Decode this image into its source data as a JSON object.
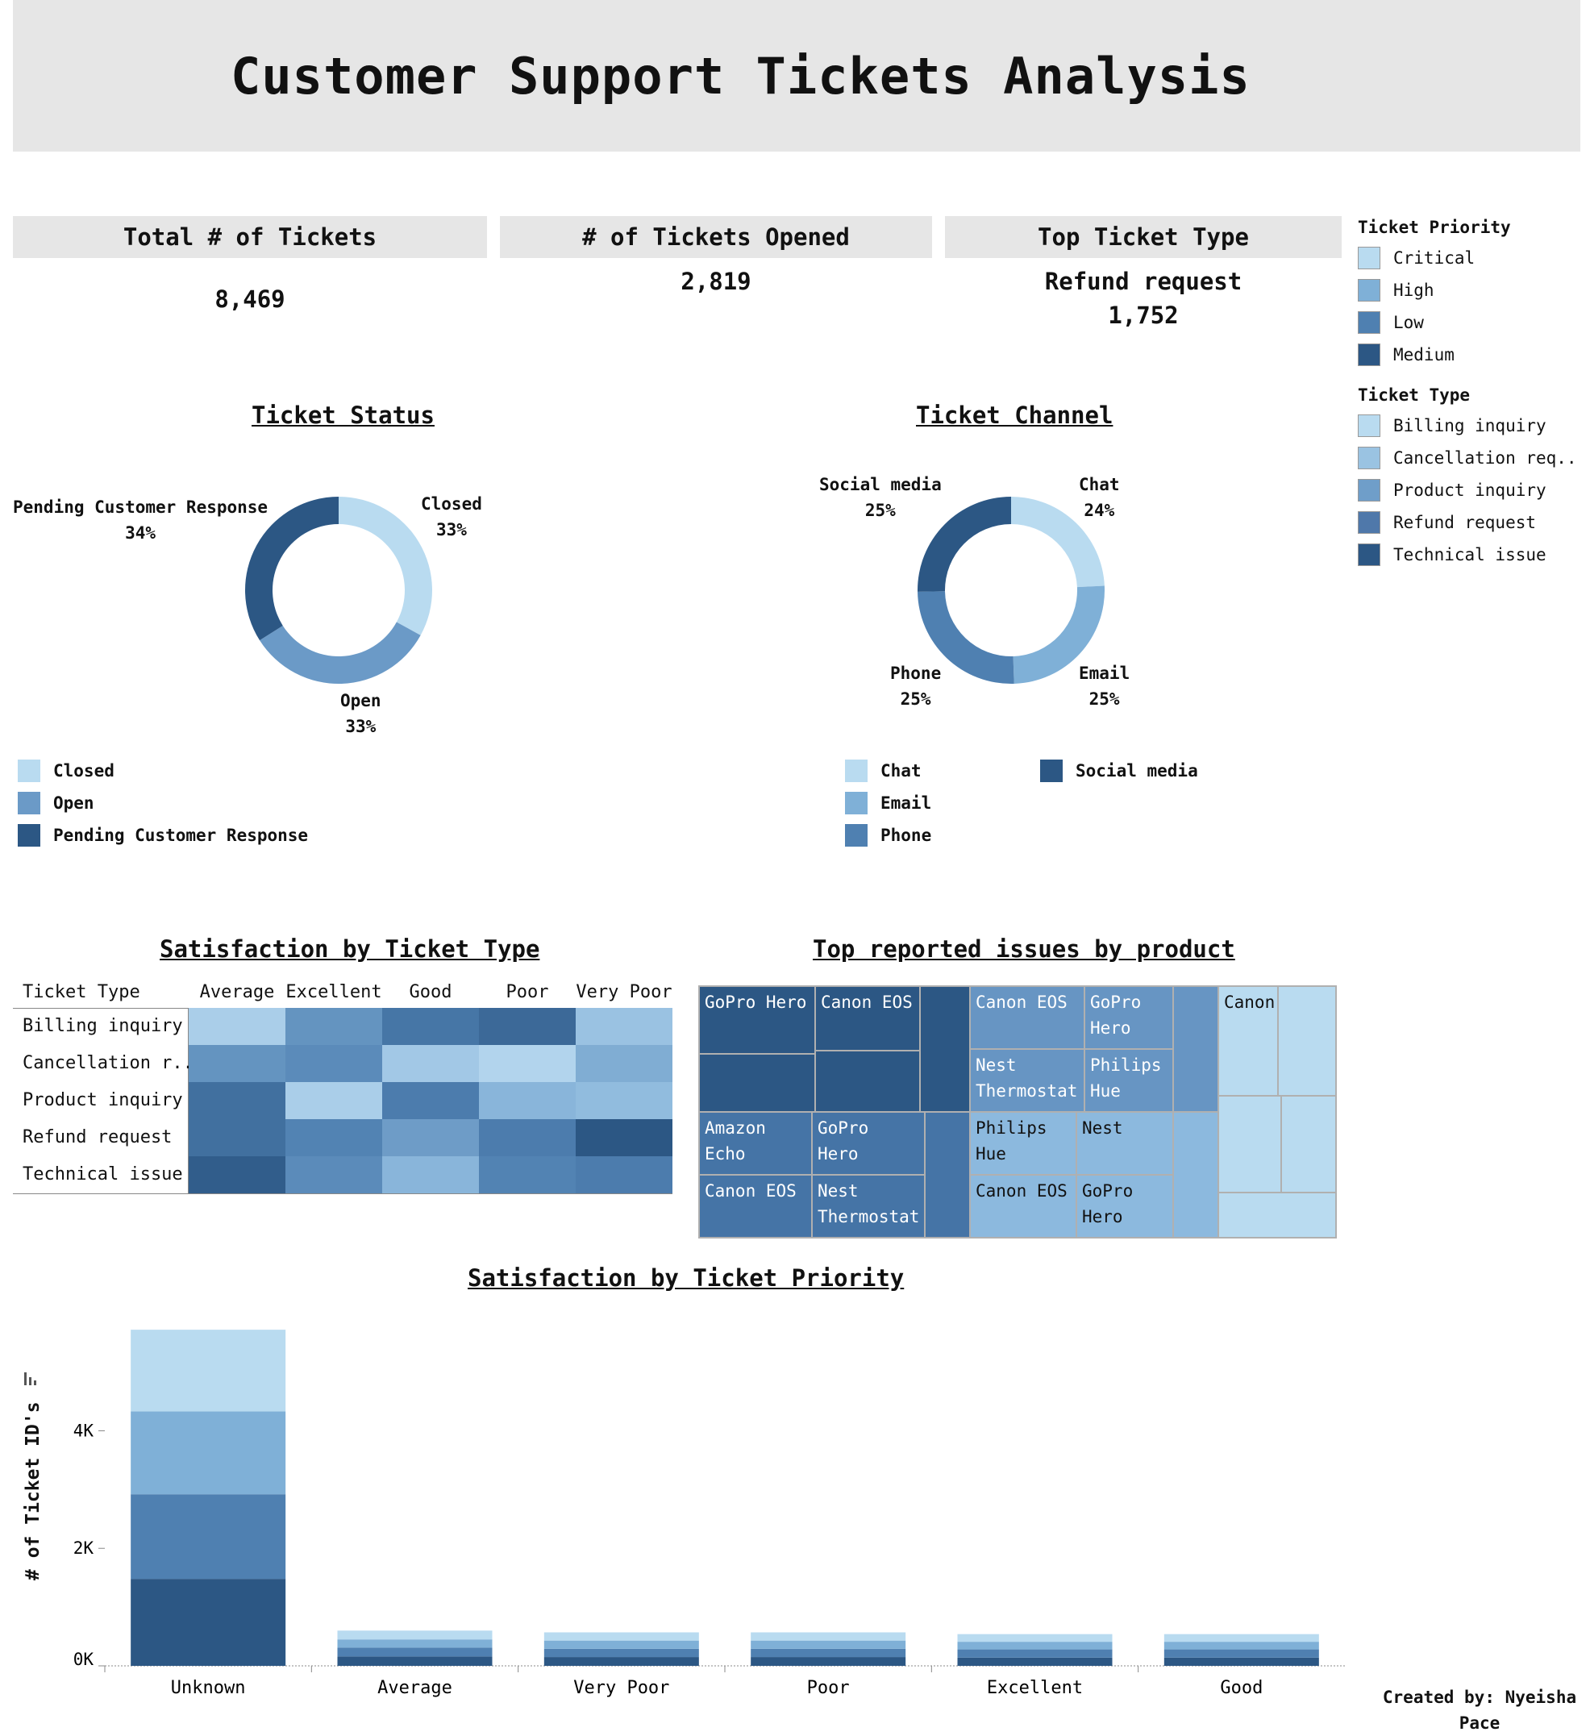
{
  "header": {
    "title": "Customer Support Tickets Analysis"
  },
  "kpis": [
    {
      "label": "Total # of Tickets",
      "value": "8,469",
      "sub": ""
    },
    {
      "label": "# of Tickets Opened",
      "value": "2,819",
      "sub": ""
    },
    {
      "label": "Top Ticket Type",
      "value": "Refund request",
      "sub": "1,752"
    }
  ],
  "colors": {
    "c1": "#b9dbf0",
    "c2": "#7fb0d7",
    "c3": "#4f80b1",
    "c4": "#2c5784",
    "tt1": "#b9dbf0",
    "tt2": "#9ac3e2",
    "tt3": "#6f9ec9",
    "tt4": "#4f78aa",
    "tt5": "#2c5784"
  },
  "legend_priority": {
    "title": "Ticket Priority",
    "items": [
      {
        "label": "Critical",
        "color": "#b9dbf0"
      },
      {
        "label": "High",
        "color": "#7fb0d7"
      },
      {
        "label": "Low",
        "color": "#4f80b1"
      },
      {
        "label": "Medium",
        "color": "#2c5784"
      }
    ]
  },
  "legend_type": {
    "title": "Ticket Type",
    "items": [
      {
        "label": "Billing inquiry",
        "color": "#b9dbf0"
      },
      {
        "label": "Cancellation req..",
        "color": "#9ac3e2"
      },
      {
        "label": "Product inquiry",
        "color": "#6f9ec9"
      },
      {
        "label": "Refund request",
        "color": "#4f78aa"
      },
      {
        "label": "Technical issue",
        "color": "#2c5784"
      }
    ]
  },
  "chart_data": [
    {
      "type": "pie",
      "title": "Ticket Status",
      "slices": [
        {
          "label": "Closed",
          "value": 33,
          "display": "33%",
          "color": "#b9dbf0"
        },
        {
          "label": "Open",
          "value": 33,
          "display": "33%",
          "color": "#6b9ac7"
        },
        {
          "label": "Pending Customer Response",
          "value": 34,
          "display": "34%",
          "color": "#2c5784"
        }
      ],
      "legend": [
        "Closed",
        "Open",
        "Pending Customer Response"
      ]
    },
    {
      "type": "pie",
      "title": "Ticket Channel",
      "slices": [
        {
          "label": "Chat",
          "value": 24,
          "display": "24%",
          "color": "#b9dbf0"
        },
        {
          "label": "Email",
          "value": 25,
          "display": "25%",
          "color": "#7fb0d7"
        },
        {
          "label": "Phone",
          "value": 25,
          "display": "25%",
          "color": "#4f80b1"
        },
        {
          "label": "Social media",
          "value": 25,
          "display": "25%",
          "color": "#2c5784"
        }
      ],
      "legend": [
        "Chat",
        "Email",
        "Phone",
        "Social media"
      ]
    },
    {
      "type": "heatmap",
      "title": "Satisfaction by Ticket Type",
      "row_header": "Ticket Type",
      "columns": [
        "Average",
        "Excellent",
        "Good",
        "Poor",
        "Very Poor"
      ],
      "rows": [
        "Billing inquiry",
        "Cancellation r..",
        "Product inquiry",
        "Refund request",
        "Technical issue"
      ],
      "values": [
        [
          0.15,
          0.55,
          0.75,
          0.85,
          0.25
        ],
        [
          0.55,
          0.6,
          0.2,
          0.1,
          0.4
        ],
        [
          0.8,
          0.15,
          0.7,
          0.35,
          0.3
        ],
        [
          0.8,
          0.65,
          0.5,
          0.7,
          1.0
        ],
        [
          0.95,
          0.6,
          0.35,
          0.65,
          0.7
        ]
      ]
    },
    {
      "type": "treemap",
      "title": "Top reported issues by product",
      "groups": [
        {
          "name": "Technical issue",
          "color": "#2c5784",
          "cells": [
            "GoPro Hero",
            "Canon EOS",
            "",
            "",
            ""
          ]
        },
        {
          "name": "Product inquiry",
          "color": "#6795c3",
          "cells": [
            "Canon EOS",
            "GoPro Hero",
            "Nest Thermostat",
            "Philips Hue",
            ""
          ]
        },
        {
          "name": "Refund request",
          "color": "#4574a6",
          "cells": [
            "Amazon Echo",
            "GoPro Hero",
            "Canon EOS",
            "Nest Thermostat",
            ""
          ]
        },
        {
          "name": "Cancellation request",
          "color": "#8cb9de",
          "cells": [
            "Philips Hue",
            "Nest",
            "Canon EOS",
            "GoPro Hero",
            ""
          ]
        },
        {
          "name": "Billing inquiry",
          "color": "#b9dbf0",
          "cells": [
            "Canon",
            "",
            "",
            "",
            ""
          ]
        }
      ]
    },
    {
      "type": "bar",
      "title": "Satisfaction by Ticket Priority",
      "ylabel": "# of Ticket ID's",
      "xlabel": "",
      "categories": [
        "Unknown",
        "Average",
        "Very Poor",
        "Poor",
        "Excellent",
        "Good"
      ],
      "ylim": [
        0,
        5900
      ],
      "yticks": [
        {
          "value": 0,
          "label": "0K"
        },
        {
          "value": 2000,
          "label": "2K"
        },
        {
          "value": 4000,
          "label": "4K"
        }
      ],
      "series": [
        {
          "name": "Medium",
          "color": "#2c5784",
          "values": [
            1480,
            160,
            150,
            150,
            140,
            140
          ]
        },
        {
          "name": "Low",
          "color": "#4f80b1",
          "values": [
            1440,
            150,
            140,
            140,
            140,
            140
          ]
        },
        {
          "name": "High",
          "color": "#7fb0d7",
          "values": [
            1410,
            140,
            140,
            140,
            130,
            130
          ]
        },
        {
          "name": "Critical",
          "color": "#b9dbf0",
          "values": [
            1390,
            150,
            140,
            140,
            130,
            130
          ]
        }
      ]
    }
  ],
  "footer": {
    "line1": "Created by: Nyeisha",
    "line2": "Pace"
  }
}
